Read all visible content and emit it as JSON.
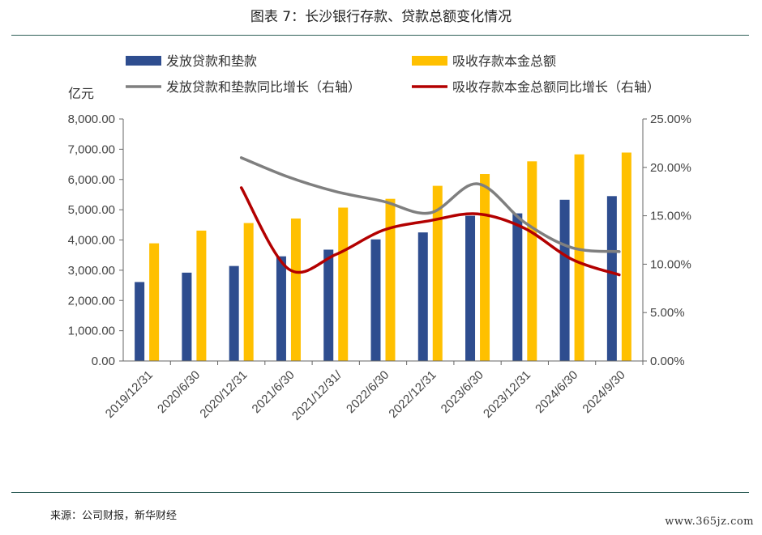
{
  "title": "图表 7：长沙银行存款、贷款总额变化情况",
  "source": "来源：公司财报，新华财经",
  "watermark": "www.365jz.com",
  "chart_data": {
    "type": "bar",
    "unit_label": "亿元",
    "categories": [
      "2019/12/31",
      "2020/6/30",
      "2020/12/31",
      "2021/6/30",
      "2021/12/31/",
      "2022/6/30",
      "2022/12/31",
      "2023/6/30",
      "2023/12/31",
      "2024/6/30",
      "2024/9/30"
    ],
    "series": [
      {
        "name": "发放贷款和垫款",
        "kind": "bar",
        "axis": "left",
        "color": "#2e4d8f",
        "values": [
          2610,
          2920,
          3140,
          3460,
          3680,
          4020,
          4250,
          4800,
          4880,
          5330,
          5450
        ]
      },
      {
        "name": "吸收存款本金总额",
        "kind": "bar",
        "axis": "left",
        "color": "#ffc000",
        "values": [
          3890,
          4310,
          4560,
          4710,
          5070,
          5360,
          5790,
          6180,
          6600,
          6830,
          6890
        ]
      },
      {
        "name": "发放贷款和垫款同比增长（右轴）",
        "kind": "line",
        "axis": "right",
        "color": "#7f7f7f",
        "values": [
          null,
          null,
          0.21,
          0.19,
          0.175,
          0.165,
          0.153,
          0.183,
          0.143,
          0.117,
          0.113
        ]
      },
      {
        "name": "吸收存款本金总额同比增长（右轴）",
        "kind": "line",
        "axis": "right",
        "color": "#b30000",
        "values": [
          null,
          null,
          0.179,
          0.095,
          0.11,
          0.135,
          0.145,
          0.152,
          0.137,
          0.105,
          0.089
        ]
      }
    ],
    "ylim": [
      0,
      8000
    ],
    "y2lim": [
      0,
      0.25
    ],
    "y_ticks": [
      "0.00",
      "1,000.00",
      "2,000.00",
      "3,000.00",
      "4,000.00",
      "5,000.00",
      "6,000.00",
      "7,000.00",
      "8,000.00"
    ],
    "y2_ticks": [
      "0.00%",
      "5.00%",
      "10.00%",
      "15.00%",
      "20.00%",
      "25.00%"
    ],
    "grid": false,
    "legend_position": "top"
  }
}
